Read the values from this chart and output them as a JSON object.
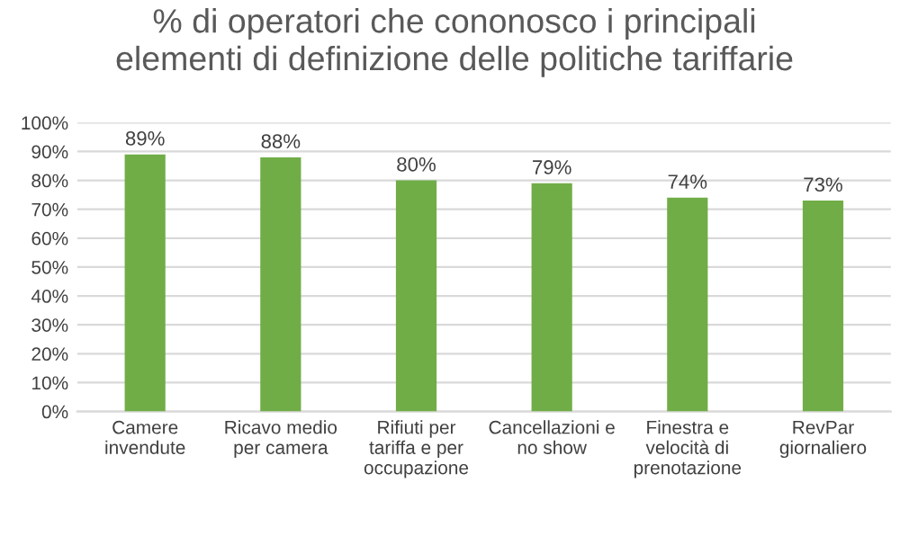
{
  "chart_data": {
    "type": "bar",
    "title": "% di operatori che cononosco i principali\nelementi di definizione delle politiche tariffarie",
    "categories": [
      "Camere\ninvendute",
      "Ricavo medio\nper camera",
      "Rifiuti per\ntariffa e per\noccupazione",
      "Cancellazioni e\nno show",
      "Finestra e\nvelocità di\nprenotazione",
      "RevPar\ngiornaliero"
    ],
    "values": [
      89,
      88,
      80,
      79,
      74,
      73
    ],
    "value_labels": [
      "89%",
      "88%",
      "80%",
      "79%",
      "74%",
      "73%"
    ],
    "color": "#70ad47",
    "ylim": [
      0,
      100
    ],
    "yticks": [
      {
        "value": 0,
        "label": "0%"
      },
      {
        "value": 10,
        "label": "10%"
      },
      {
        "value": 20,
        "label": "20%"
      },
      {
        "value": 30,
        "label": "30%"
      },
      {
        "value": 40,
        "label": "40%"
      },
      {
        "value": 50,
        "label": "50%"
      },
      {
        "value": 60,
        "label": "60%"
      },
      {
        "value": 70,
        "label": "70%"
      },
      {
        "value": 80,
        "label": "80%"
      },
      {
        "value": 90,
        "label": "90%"
      },
      {
        "value": 100,
        "label": "100%"
      }
    ],
    "grid": "y",
    "legend": false
  }
}
